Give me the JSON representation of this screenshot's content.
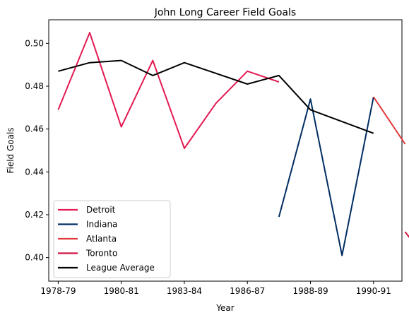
{
  "chart_data": {
    "type": "line",
    "title": "John Long  Career Field Goals",
    "xlabel": "Year",
    "ylabel": "Field Goals",
    "x_tick_labels": [
      "1978-79",
      "1980-81",
      "1983-84",
      "1986-87",
      "1988-89",
      "1990-91"
    ],
    "x_tick_positions": [
      0,
      2,
      4,
      6,
      8,
      10
    ],
    "y_ticks": [
      0.4,
      0.42,
      0.44,
      0.46,
      0.48,
      0.5
    ],
    "xlim": [
      -0.3,
      10.9
    ],
    "ylim": [
      0.389,
      0.511
    ],
    "grid": false,
    "legend_position": "lower left",
    "series": [
      {
        "name": "Detroit",
        "color": "#e31a51",
        "x": [
          0,
          1,
          2,
          3,
          4,
          5,
          6,
          7
        ],
        "y": [
          0.469,
          0.505,
          0.461,
          0.492,
          0.451,
          0.472,
          0.487,
          0.482
        ]
      },
      {
        "name": "Indiana",
        "color": "#002d62",
        "x": [
          7,
          8,
          9,
          10
        ],
        "y": [
          0.419,
          0.474,
          0.401,
          0.475
        ]
      },
      {
        "name": "Atlanta",
        "color": "#e03a3e",
        "x": [
          10,
          11
        ],
        "y": [
          0.475,
          0.453
        ]
      },
      {
        "name": "Toronto",
        "color": "#ce1141",
        "x": [
          11,
          12
        ],
        "y": [
          0.412,
          0.393
        ]
      },
      {
        "name": "League Average",
        "color": "#000000",
        "x": [
          0,
          1,
          2,
          3,
          4,
          5,
          6,
          7,
          8,
          10
        ],
        "y": [
          0.487,
          0.491,
          0.492,
          0.485,
          0.491,
          0.486,
          0.481,
          0.485,
          0.469,
          0.458
        ]
      }
    ]
  }
}
